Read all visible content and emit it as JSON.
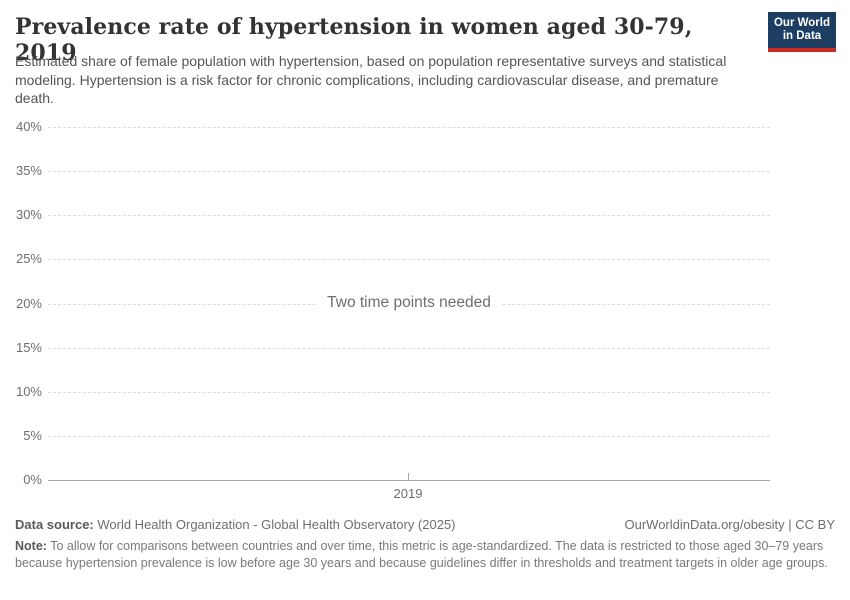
{
  "header": {
    "title": "Prevalence rate of hypertension in women aged 30-79, 2019",
    "subtitle": "Estimated share of female population with hypertension, based on population representative surveys and statistical modeling. Hypertension is a risk factor for chronic complications, including cardiovascular disease, and premature death.",
    "logo": {
      "line1": "Our World",
      "line2": "in Data",
      "bg_color": "#1d3d63",
      "stripe_color": "#cc2a25"
    }
  },
  "chart_data": {
    "type": "line",
    "title": "Prevalence rate of hypertension in women aged 30-79, 2019",
    "series": [],
    "message": "Two time points needed",
    "xlabel": "",
    "ylabel": "",
    "ylim": [
      0,
      40
    ],
    "yticks": [
      "0%",
      "5%",
      "10%",
      "15%",
      "20%",
      "25%",
      "30%",
      "35%",
      "40%"
    ],
    "xticks": [
      "2019"
    ],
    "grid": "horizontal dashed gridlines, legend none",
    "grid_color": "#dcdcdc",
    "axis_color": "#a8a8a8"
  },
  "footer": {
    "datasource_label": "Data source:",
    "datasource_value": " World Health Organization - Global Health Observatory (2025)",
    "rights": "OurWorldinData.org/obesity | CC BY",
    "note_label": "Note:",
    "note_value": " To allow for comparisons between countries and over time, this metric is age-standardized. The data is restricted to those aged 30–79 years because hypertension prevalence is low before age 30 years and because guidelines differ in thresholds and treatment targets in older age groups."
  }
}
